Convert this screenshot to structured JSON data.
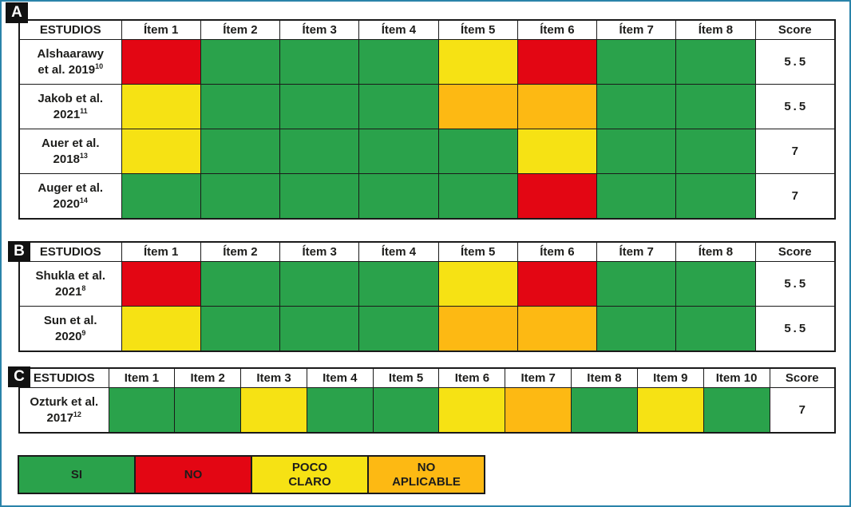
{
  "colors": {
    "SI": "#2aa24b",
    "NO": "#e30613",
    "POCO_CLARO": "#f6e214",
    "NO_APLICABLE": "#fdb913",
    "frame_border": "#2a83a9",
    "grid_border": "#1a1a1a",
    "text": "#1d1d1b"
  },
  "sections": [
    {
      "label": "A",
      "headers": [
        "ESTUDIOS",
        "Ítem 1",
        "Ítem 2",
        "Ítem 3",
        "Ítem 4",
        "Ítem 5",
        "Ítem 6",
        "Ítem 7",
        "Ítem 8",
        "Score"
      ],
      "rows": [
        {
          "study": "Alshaarawy et al. 2019",
          "superscript": "10",
          "items": [
            "NO",
            "SI",
            "SI",
            "SI",
            "POCO_CLARO",
            "NO",
            "SI",
            "SI"
          ],
          "score": "5.5"
        },
        {
          "study": "Jakob et al. 2021",
          "superscript": "11",
          "items": [
            "POCO_CLARO",
            "SI",
            "SI",
            "SI",
            "NO_APLICABLE",
            "NO_APLICABLE",
            "SI",
            "SI"
          ],
          "score": "5.5"
        },
        {
          "study": "Auer et al. 2018",
          "superscript": "13",
          "items": [
            "POCO_CLARO",
            "SI",
            "SI",
            "SI",
            "SI",
            "POCO_CLARO",
            "SI",
            "SI"
          ],
          "score": "7"
        },
        {
          "study": "Auger et al. 2020",
          "superscript": "14",
          "items": [
            "SI",
            "SI",
            "SI",
            "SI",
            "SI",
            "NO",
            "SI",
            "SI"
          ],
          "score": "7"
        }
      ]
    },
    {
      "label": "B",
      "headers": [
        "ESTUDIOS",
        "Ítem 1",
        "Ítem 2",
        "Ítem 3",
        "Ítem 4",
        "Ítem 5",
        "Ítem 6",
        "Ítem 7",
        "Ítem 8",
        "Score"
      ],
      "rows": [
        {
          "study": "Shukla et al. 2021",
          "superscript": "8",
          "items": [
            "NO",
            "SI",
            "SI",
            "SI",
            "POCO_CLARO",
            "NO",
            "SI",
            "SI"
          ],
          "score": "5.5"
        },
        {
          "study": "Sun et al. 2020",
          "superscript": "9",
          "items": [
            "POCO_CLARO",
            "SI",
            "SI",
            "SI",
            "NO_APLICABLE",
            "NO_APLICABLE",
            "SI",
            "SI"
          ],
          "score": "5.5"
        }
      ]
    },
    {
      "label": "C",
      "headers": [
        "ESTUDIOS",
        "Item 1",
        "Item 2",
        "Item 3",
        "Item 4",
        "Item 5",
        "Item 6",
        "Item 7",
        "Item 8",
        "Item 9",
        "Item 10",
        "Score"
      ],
      "rows": [
        {
          "study": "Ozturk et al. 2017",
          "superscript": "12",
          "items": [
            "SI",
            "SI",
            "POCO_CLARO",
            "SI",
            "SI",
            "POCO_CLARO",
            "NO_APLICABLE",
            "SI",
            "POCO_CLARO",
            "SI"
          ],
          "score": "7"
        }
      ]
    }
  ],
  "legend": [
    {
      "label": "SI",
      "lines": [
        "SI"
      ],
      "value": "SI"
    },
    {
      "label": "NO",
      "lines": [
        "NO"
      ],
      "value": "NO"
    },
    {
      "label": "POCO CLARO",
      "lines": [
        "POCO",
        "CLARO"
      ],
      "value": "POCO_CLARO"
    },
    {
      "label": "NO APLICABLE",
      "lines": [
        "NO",
        "APLICABLE"
      ],
      "value": "NO_APLICABLE"
    }
  ],
  "chart_data": [
    {
      "type": "heatmap",
      "title": "A",
      "rows": [
        "Alshaarawy et al. 2019 [10]",
        "Jakob et al. 2021 [11]",
        "Auer et al. 2018 [13]",
        "Auger et al. 2020 [14]"
      ],
      "columns": [
        "Ítem 1",
        "Ítem 2",
        "Ítem 3",
        "Ítem 4",
        "Ítem 5",
        "Ítem 6",
        "Ítem 7",
        "Ítem 8"
      ],
      "values": [
        [
          "NO",
          "SI",
          "SI",
          "SI",
          "POCO CLARO",
          "NO",
          "SI",
          "SI"
        ],
        [
          "POCO CLARO",
          "SI",
          "SI",
          "SI",
          "NO APLICABLE",
          "NO APLICABLE",
          "SI",
          "SI"
        ],
        [
          "POCO CLARO",
          "SI",
          "SI",
          "SI",
          "SI",
          "POCO CLARO",
          "SI",
          "SI"
        ],
        [
          "SI",
          "SI",
          "SI",
          "SI",
          "SI",
          "NO",
          "SI",
          "SI"
        ]
      ],
      "scores": [
        5.5,
        5.5,
        7,
        7
      ],
      "legend_position": "bottom"
    },
    {
      "type": "heatmap",
      "title": "B",
      "rows": [
        "Shukla et al. 2021 [8]",
        "Sun et al. 2020 [9]"
      ],
      "columns": [
        "Ítem 1",
        "Ítem 2",
        "Ítem 3",
        "Ítem 4",
        "Ítem 5",
        "Ítem 6",
        "Ítem 7",
        "Ítem 8"
      ],
      "values": [
        [
          "NO",
          "SI",
          "SI",
          "SI",
          "POCO CLARO",
          "NO",
          "SI",
          "SI"
        ],
        [
          "POCO CLARO",
          "SI",
          "SI",
          "SI",
          "NO APLICABLE",
          "NO APLICABLE",
          "SI",
          "SI"
        ]
      ],
      "scores": [
        5.5,
        5.5
      ],
      "legend_position": "bottom"
    },
    {
      "type": "heatmap",
      "title": "C",
      "rows": [
        "Ozturk et al. 2017 [12]"
      ],
      "columns": [
        "Item 1",
        "Item 2",
        "Item 3",
        "Item 4",
        "Item 5",
        "Item 6",
        "Item 7",
        "Item 8",
        "Item 9",
        "Item 10"
      ],
      "values": [
        [
          "SI",
          "SI",
          "POCO CLARO",
          "SI",
          "SI",
          "POCO CLARO",
          "NO APLICABLE",
          "SI",
          "POCO CLARO",
          "SI"
        ]
      ],
      "scores": [
        7
      ],
      "legend_position": "bottom"
    }
  ]
}
